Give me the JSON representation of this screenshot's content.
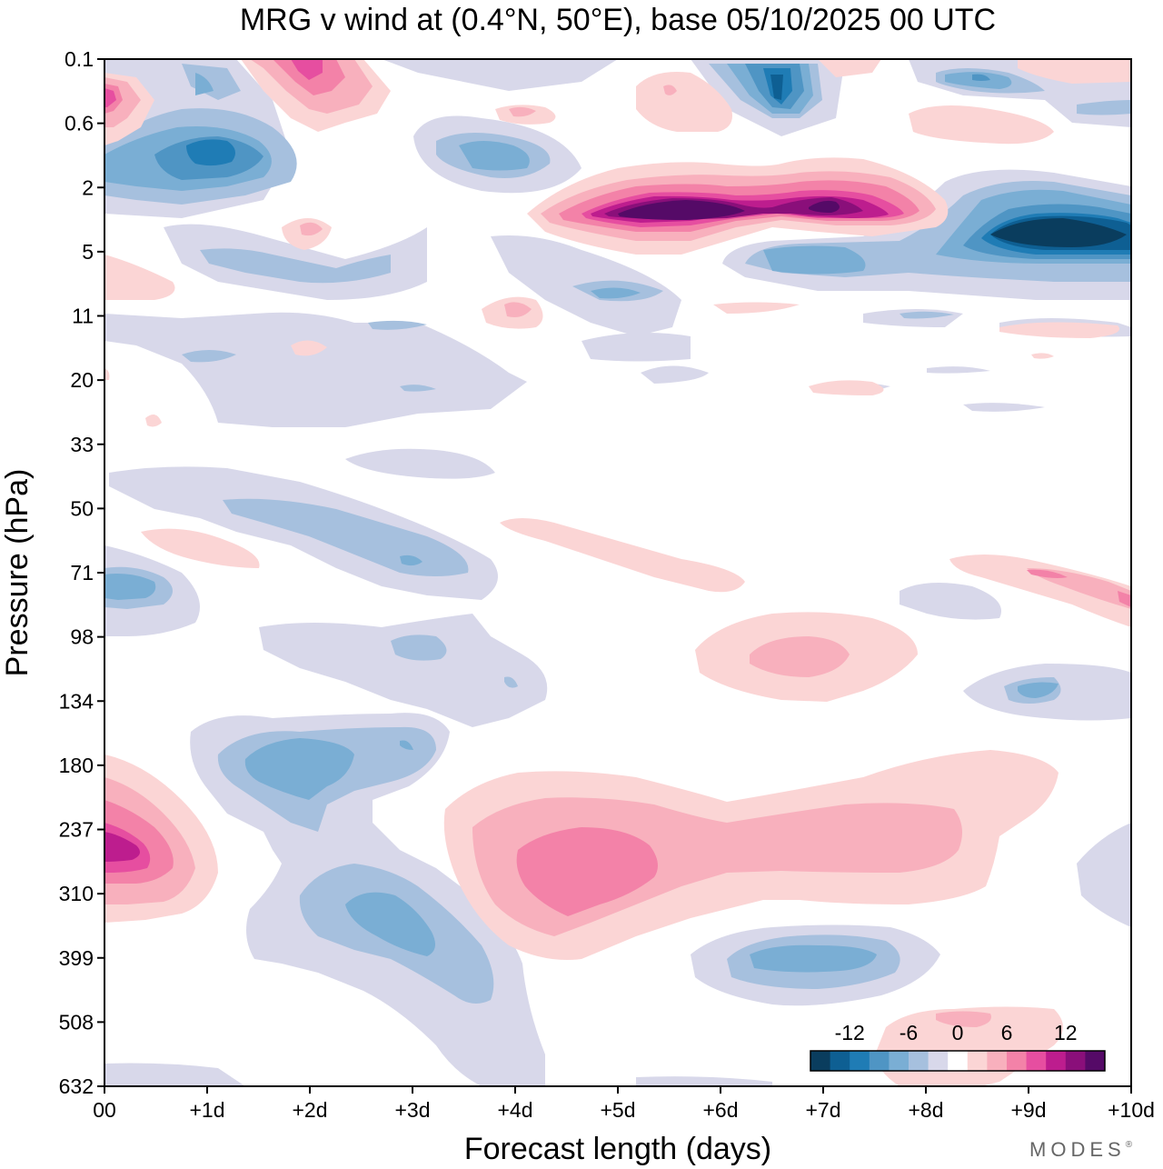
{
  "chart_data": {
    "type": "heatmap",
    "title": "MRG v wind at (0.4°N, 50°E),  base 05/10/2025  00 UTC",
    "xlabel": "Forecast length (days)",
    "ylabel": "Pressure (hPa)",
    "x_ticks": [
      "00",
      "+1d",
      "+2d",
      "+3d",
      "+4d",
      "+5d",
      "+6d",
      "+7d",
      "+8d",
      "+9d",
      "+10d"
    ],
    "y_ticks": [
      "0.1",
      "0.6",
      "2",
      "5",
      "11",
      "20",
      "33",
      "50",
      "71",
      "98",
      "134",
      "180",
      "237",
      "310",
      "399",
      "508",
      "632"
    ],
    "xlim_days": [
      0,
      10
    ],
    "colorbar": {
      "labels": [
        "-12",
        "-6",
        "0",
        "6",
        "12"
      ],
      "label_values": [
        -12,
        -6,
        0,
        6,
        12
      ],
      "levels": [
        -14,
        -12,
        -10,
        -8,
        -6,
        -4,
        -2,
        2,
        4,
        6,
        8,
        10,
        12,
        14
      ],
      "colors": [
        "#0a3d5e",
        "#0e5f93",
        "#1f7cb5",
        "#4f95c4",
        "#7aaed4",
        "#a6c0de",
        "#d8d8ea",
        "#ffffff",
        "#fbd5d5",
        "#f8b0bd",
        "#f382a8",
        "#e64ea0",
        "#bd1d8e",
        "#8a0f7a",
        "#550a67"
      ]
    },
    "features": [
      {
        "name": "blob-ne-strong",
        "x_days": 9.5,
        "level_index": 3,
        "value": -15
      },
      {
        "name": "blob-pos-upper",
        "x_days": 5.6,
        "level_index": 2.4,
        "value": 16
      },
      {
        "name": "blob-pos-upper-2",
        "x_days": 7.0,
        "level_index": 2.3,
        "value": 15
      },
      {
        "name": "blob-pos-lower",
        "x_days": 5.0,
        "level_index": 12.5,
        "value": 9
      },
      {
        "name": "blob-pos-left",
        "x_days": 0.3,
        "level_index": 12.3,
        "value": 11
      },
      {
        "name": "blob-neg-upper-left",
        "x_days": 1.0,
        "level_index": 1.4,
        "value": -11
      },
      {
        "name": "blob-neg-top",
        "x_days": 6.5,
        "level_index": 0.4,
        "value": -11
      },
      {
        "name": "blob-neg-mid",
        "x_days": 2.0,
        "level_index": 11.0,
        "value": -9
      },
      {
        "name": "blob-neg-low",
        "x_days": 3.0,
        "level_index": 13.5,
        "value": -9
      },
      {
        "name": "blob-pos-top",
        "x_days": 2.0,
        "level_index": 0.2,
        "value": 9
      },
      {
        "name": "blob-pos-topleft",
        "x_days": 0.0,
        "level_index": 0.6,
        "value": 11
      },
      {
        "name": "blob-pos-98",
        "x_days": 7.0,
        "level_index": 9.3,
        "value": 7
      },
      {
        "name": "blob-pos-508",
        "x_days": 9.0,
        "level_index": 15.3,
        "value": 5
      },
      {
        "name": "blob-neg-399",
        "x_days": 7.0,
        "level_index": 14.0,
        "value": -6
      },
      {
        "name": "blob-neg-134",
        "x_days": 9.2,
        "level_index": 10.8,
        "value": -6
      },
      {
        "name": "blob-neg-71",
        "x_days": 0.2,
        "level_index": 8.3,
        "value": -8
      },
      {
        "name": "blob-neg-50",
        "x_days": 2.8,
        "level_index": 7.8,
        "value": -6
      },
      {
        "name": "blob-neg-5",
        "x_days": 7.5,
        "level_index": 3.2,
        "value": -8
      },
      {
        "name": "blob-pos-71",
        "x_days": 9.8,
        "level_index": 8.5,
        "value": 6
      },
      {
        "name": "blob-pos-60",
        "x_days": 5.0,
        "level_index": 8.2,
        "value": 4
      }
    ]
  },
  "brand": "MODES",
  "brand_mark": "®"
}
